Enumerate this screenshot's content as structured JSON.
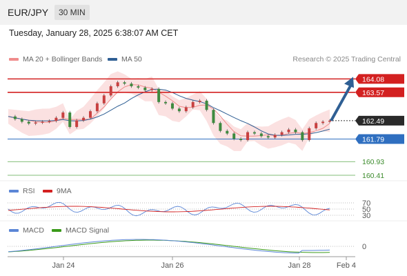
{
  "header": {
    "symbol": "EUR/JPY",
    "timeframe": "30 MIN"
  },
  "timestamp": "Tuesday, January 28, 2025 6:38:07 AM CET",
  "legend": {
    "ma_bb": {
      "label": "MA 20 + Bollinger Bands",
      "color": "#f08c8c"
    },
    "ma50": {
      "label": "MA 50",
      "color": "#2f5f94"
    },
    "credit": "Research © 2025 Trading Central"
  },
  "rsi_legend": {
    "rsi": {
      "label": "RSI",
      "color": "#5b86d6"
    },
    "ma": {
      "label": "9MA",
      "color": "#d32020"
    }
  },
  "macd_legend": {
    "macd": {
      "label": "MACD",
      "color": "#5b86d6"
    },
    "signal": {
      "label": "MACD Signal",
      "color": "#3a9a1a"
    }
  },
  "chart_data": {
    "type": "candlestick",
    "ylim": [
      160.2,
      164.3
    ],
    "x_tick_labels": [
      "Jan 24",
      "Jan 26",
      "Jan 28",
      "Feb 4"
    ],
    "current_price": 162.49,
    "levels": [
      {
        "value": 164.08,
        "label": "164.08",
        "kind": "resistance"
      },
      {
        "value": 163.57,
        "label": "163.57",
        "kind": "resistance"
      },
      {
        "value": 162.49,
        "label": "162.49",
        "kind": "current"
      },
      {
        "value": 161.79,
        "label": "161.79",
        "kind": "pivot"
      },
      {
        "value": 160.93,
        "label": "160.93",
        "kind": "support"
      },
      {
        "value": 160.41,
        "label": "160.41",
        "kind": "support"
      }
    ],
    "price_path": [
      162.65,
      162.55,
      162.45,
      162.38,
      162.42,
      162.45,
      162.48,
      162.6,
      162.8,
      162.25,
      162.5,
      162.6,
      162.85,
      163.15,
      163.45,
      163.8,
      163.95,
      163.9,
      163.8,
      163.75,
      163.65,
      163.7,
      163.2,
      163.15,
      162.95,
      162.85,
      163.0,
      163.2,
      163.25,
      162.9,
      162.4,
      162.1,
      162.0,
      161.8,
      161.75,
      162.05,
      162.0,
      161.9,
      161.85,
      161.95,
      162.05,
      162.15,
      162.05,
      161.75,
      162.2,
      162.4,
      162.45,
      162.49
    ],
    "trend_arrow": {
      "from": 162.49,
      "to": 164.0
    },
    "rsi": {
      "levels": [
        70,
        50,
        30
      ]
    },
    "macd": {
      "zero_label": "0"
    }
  }
}
